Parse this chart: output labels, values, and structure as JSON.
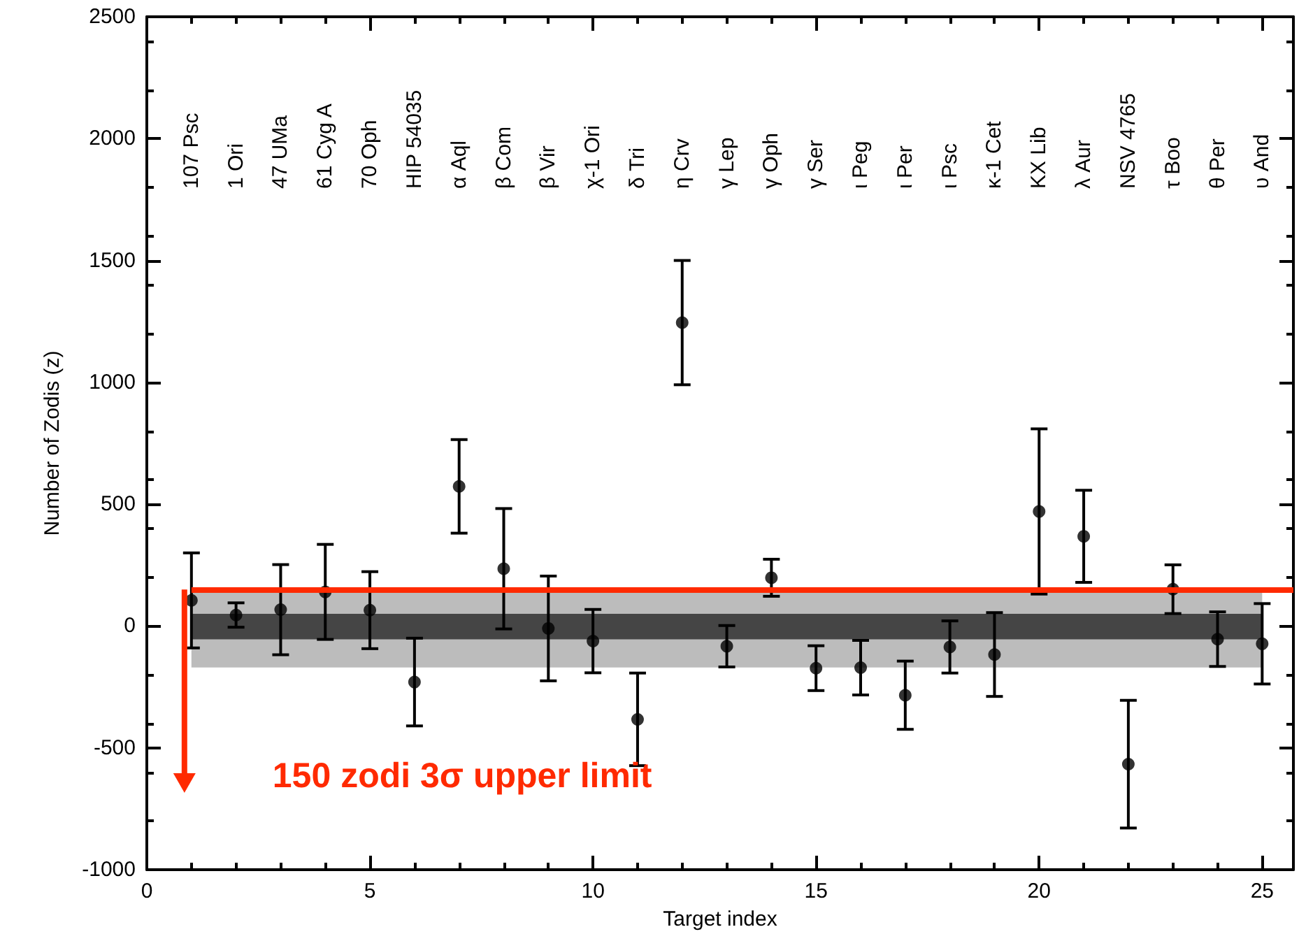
{
  "chart_data": {
    "type": "scatter",
    "xlabel": "Target index",
    "ylabel": "Number of Zodis (z)",
    "x": [
      1,
      2,
      3,
      4,
      5,
      6,
      7,
      8,
      9,
      10,
      11,
      12,
      13,
      14,
      15,
      16,
      17,
      18,
      19,
      20,
      21,
      22,
      23,
      24,
      25
    ],
    "series": [
      {
        "color": "#000000",
        "values": [
          105,
          45,
          67,
          140,
          65,
          -230,
          573,
          235,
          -10,
          -62,
          -383,
          1245,
          -83,
          198,
          -173,
          -171,
          -284,
          -86,
          -117,
          470,
          368,
          -567,
          151,
          -54,
          -73
        ],
        "errors": [
          195,
          50,
          185,
          195,
          158,
          180,
          192,
          247,
          215,
          130,
          190,
          255,
          85,
          76,
          92,
          112,
          140,
          107,
          172,
          339,
          189,
          262,
          100,
          112,
          165
        ]
      }
    ],
    "marker": "circle",
    "xlim": [
      0,
      25.7
    ],
    "xticks": [
      0,
      5,
      10,
      15,
      20,
      25
    ],
    "ylim": [
      -1000,
      2500
    ],
    "yticks": [
      -1000,
      -500,
      0,
      500,
      1000,
      1500,
      2000,
      2500
    ],
    "ref_lines": [
      {
        "axis": "y",
        "value": 150,
        "color": "#ff2a00"
      }
    ],
    "bands": [
      {
        "axis": "y",
        "from": -170,
        "to": 150,
        "color": "#bcbcbc"
      },
      {
        "axis": "y",
        "from": -55,
        "to": 50,
        "color": "#454545"
      }
    ],
    "annotations": [
      "107 Psc",
      "1 Ori",
      "47 UMa",
      "61 Cyg A",
      "70 Oph",
      "HIP 54035",
      "α Aql",
      "β Com",
      "β Vir",
      "χ-1 Ori",
      "δ Tri",
      "η Crv",
      "γ Lep",
      "γ Oph",
      "γ Ser",
      "ι Peg",
      "ι Per",
      "ι Psc",
      "κ-1 Cet",
      "KX Lib",
      "λ Aur",
      "NSV 4765",
      "τ Boo",
      "θ Per",
      "υ And",
      "150 zodi 3σ upper limit"
    ]
  }
}
